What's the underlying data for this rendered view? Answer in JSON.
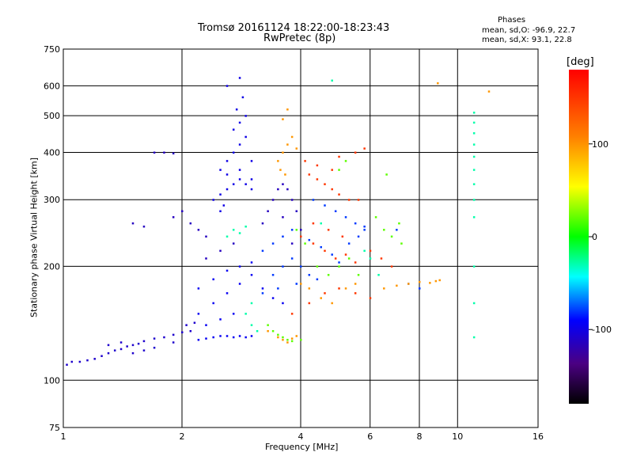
{
  "chart_data": {
    "type": "scatter",
    "title": "Tromsø 20161124  18:22:00-18:23:43",
    "subtitle": "RwPretec (8p)",
    "xlabel": "Frequency [MHz]",
    "ylabel": "Stationary phase Virtual Height [km]",
    "xscale": "log",
    "yscale": "log",
    "xlim": [
      1,
      16
    ],
    "ylim": [
      75,
      750
    ],
    "x_ticks": [
      "1",
      "2",
      "4",
      "6",
      "8",
      "10",
      "16"
    ],
    "x_tick_values": [
      1,
      2,
      4,
      6,
      8,
      10,
      16
    ],
    "y_ticks": [
      "75",
      "100",
      "200",
      "300",
      "400",
      "500",
      "600",
      "750"
    ],
    "y_tick_values": [
      75,
      100,
      200,
      300,
      400,
      500,
      600,
      750
    ],
    "grid": true,
    "phases": {
      "title": "Phases",
      "o_line": "mean, sd,O:  -96.9, 22.7",
      "x_line": "mean, sd,X:  93.1, 22.8"
    },
    "colorbar": {
      "unit": "[deg]",
      "range": [
        -180,
        180
      ],
      "ticks": [
        "100",
        "0",
        "-100"
      ],
      "tick_values": [
        100,
        0,
        -100
      ],
      "colormap": "rainbow (black-purple-blue-cyan-green-yellow-orange-red)",
      "placement": "right"
    },
    "series": [
      {
        "phase": -110,
        "points": [
          [
            1.02,
            110
          ],
          [
            1.05,
            112
          ],
          [
            1.1,
            112
          ],
          [
            1.15,
            113
          ],
          [
            1.2,
            114
          ],
          [
            1.25,
            116
          ],
          [
            1.3,
            118
          ],
          [
            1.35,
            120
          ],
          [
            1.4,
            121
          ],
          [
            1.45,
            123
          ],
          [
            1.5,
            124
          ],
          [
            1.55,
            125
          ],
          [
            1.6,
            127
          ],
          [
            1.7,
            129
          ],
          [
            1.8,
            130
          ],
          [
            1.9,
            132
          ],
          [
            2.0,
            134
          ],
          [
            2.1,
            135
          ],
          [
            1.3,
            124
          ],
          [
            1.4,
            126
          ],
          [
            1.5,
            118
          ],
          [
            1.6,
            120
          ],
          [
            1.7,
            122
          ],
          [
            1.9,
            126
          ],
          [
            2.05,
            140
          ],
          [
            2.15,
            142
          ]
        ]
      },
      {
        "phase": -95,
        "points": [
          [
            2.2,
            128
          ],
          [
            2.3,
            129
          ],
          [
            2.4,
            130
          ],
          [
            2.5,
            131
          ],
          [
            2.6,
            131
          ],
          [
            2.7,
            130
          ],
          [
            2.8,
            131
          ],
          [
            2.9,
            130
          ],
          [
            3.0,
            131
          ],
          [
            2.3,
            140
          ],
          [
            2.5,
            145
          ],
          [
            2.7,
            150
          ],
          [
            2.2,
            150
          ],
          [
            2.4,
            160
          ],
          [
            2.6,
            170
          ],
          [
            2.8,
            180
          ],
          [
            3.0,
            190
          ],
          [
            3.2,
            175
          ],
          [
            3.4,
            165
          ],
          [
            3.6,
            160
          ],
          [
            2.2,
            175
          ],
          [
            2.4,
            185
          ],
          [
            2.6,
            195
          ],
          [
            2.8,
            200
          ],
          [
            3.0,
            205
          ]
        ]
      },
      {
        "phase": -100,
        "points": [
          [
            2.4,
            300
          ],
          [
            2.5,
            310
          ],
          [
            2.6,
            320
          ],
          [
            2.7,
            330
          ],
          [
            2.8,
            340
          ],
          [
            2.9,
            330
          ],
          [
            3.0,
            320
          ],
          [
            2.5,
            360
          ],
          [
            2.6,
            380
          ],
          [
            2.7,
            400
          ],
          [
            2.8,
            420
          ],
          [
            2.9,
            440
          ],
          [
            3.0,
            380
          ],
          [
            2.6,
            350
          ],
          [
            2.8,
            360
          ],
          [
            3.0,
            340
          ],
          [
            2.7,
            460
          ],
          [
            2.8,
            480
          ],
          [
            2.9,
            500
          ],
          [
            2.75,
            520
          ],
          [
            2.85,
            560
          ],
          [
            2.8,
            630
          ],
          [
            2.6,
            600
          ],
          [
            2.5,
            280
          ],
          [
            2.55,
            290
          ]
        ]
      },
      {
        "phase": -115,
        "points": [
          [
            1.7,
            400
          ],
          [
            1.8,
            400
          ],
          [
            1.9,
            398
          ],
          [
            1.5,
            260
          ],
          [
            1.6,
            255
          ],
          [
            1.9,
            270
          ],
          [
            2.0,
            280
          ],
          [
            2.1,
            260
          ],
          [
            2.2,
            250
          ],
          [
            2.3,
            240
          ],
          [
            3.2,
            260
          ],
          [
            3.3,
            280
          ],
          [
            3.4,
            300
          ],
          [
            3.5,
            320
          ],
          [
            3.6,
            330
          ],
          [
            3.7,
            320
          ],
          [
            3.8,
            300
          ],
          [
            3.9,
            280
          ],
          [
            4.0,
            250
          ],
          [
            3.6,
            270
          ],
          [
            3.8,
            230
          ],
          [
            2.3,
            210
          ],
          [
            2.5,
            220
          ],
          [
            2.7,
            230
          ]
        ]
      },
      {
        "phase": -80,
        "points": [
          [
            3.4,
            190
          ],
          [
            3.6,
            200
          ],
          [
            3.8,
            210
          ],
          [
            4.0,
            200
          ],
          [
            4.2,
            190
          ],
          [
            4.4,
            185
          ],
          [
            3.2,
            220
          ],
          [
            3.4,
            230
          ],
          [
            3.6,
            240
          ],
          [
            3.8,
            250
          ],
          [
            4.2,
            235
          ],
          [
            4.5,
            225
          ],
          [
            4.8,
            215
          ],
          [
            5.0,
            205
          ],
          [
            5.3,
            230
          ],
          [
            5.6,
            240
          ],
          [
            5.8,
            250
          ],
          [
            3.2,
            170
          ],
          [
            3.5,
            175
          ],
          [
            3.9,
            180
          ],
          [
            4.3,
            300
          ],
          [
            4.6,
            290
          ],
          [
            4.9,
            280
          ],
          [
            5.2,
            270
          ],
          [
            5.5,
            260
          ],
          [
            5.8,
            255
          ],
          [
            7.0,
            250
          ],
          [
            7.5,
            180
          ],
          [
            8.0,
            175
          ]
        ]
      },
      {
        "phase": -30,
        "points": [
          [
            2.6,
            240
          ],
          [
            2.7,
            250
          ],
          [
            2.8,
            245
          ],
          [
            2.9,
            255
          ],
          [
            3.0,
            140
          ],
          [
            3.1,
            135
          ],
          [
            4.8,
            620
          ],
          [
            4.5,
            260
          ],
          [
            5.8,
            220
          ],
          [
            6.0,
            210
          ],
          [
            6.3,
            190
          ],
          [
            2.9,
            150
          ],
          [
            3.0,
            160
          ],
          [
            11.0,
            510
          ],
          [
            11.0,
            480
          ],
          [
            11.0,
            450
          ],
          [
            11.0,
            420
          ],
          [
            11.0,
            390
          ],
          [
            11.0,
            360
          ],
          [
            11.0,
            330
          ],
          [
            11.0,
            300
          ],
          [
            11.0,
            270
          ],
          [
            11.0,
            200
          ],
          [
            11.0,
            160
          ],
          [
            11.0,
            130
          ]
        ]
      },
      {
        "phase": 20,
        "points": [
          [
            3.3,
            140
          ],
          [
            3.4,
            135
          ],
          [
            3.5,
            132
          ],
          [
            3.6,
            130
          ],
          [
            3.7,
            128
          ],
          [
            3.8,
            127
          ],
          [
            4.0,
            128
          ],
          [
            3.9,
            250
          ],
          [
            4.1,
            230
          ],
          [
            4.4,
            200
          ],
          [
            4.7,
            190
          ],
          [
            5.0,
            200
          ],
          [
            5.3,
            210
          ],
          [
            5.6,
            190
          ],
          [
            6.2,
            270
          ],
          [
            6.5,
            250
          ],
          [
            6.8,
            240
          ],
          [
            7.2,
            230
          ],
          [
            5.2,
            380
          ],
          [
            5.0,
            360
          ],
          [
            6.6,
            350
          ],
          [
            7.1,
            260
          ]
        ]
      },
      {
        "phase": 100,
        "points": [
          [
            3.3,
            135
          ],
          [
            3.5,
            130
          ],
          [
            3.6,
            128
          ],
          [
            3.7,
            126
          ],
          [
            3.8,
            129
          ],
          [
            3.9,
            131
          ],
          [
            3.5,
            380
          ],
          [
            3.6,
            400
          ],
          [
            3.7,
            420
          ],
          [
            3.8,
            440
          ],
          [
            3.9,
            410
          ],
          [
            3.55,
            360
          ],
          [
            3.65,
            350
          ],
          [
            4.0,
            180
          ],
          [
            4.2,
            175
          ],
          [
            4.5,
            165
          ],
          [
            4.8,
            160
          ],
          [
            5.2,
            175
          ],
          [
            5.5,
            180
          ],
          [
            6.5,
            175
          ],
          [
            7.0,
            178
          ],
          [
            7.5,
            180
          ],
          [
            8.0,
            182
          ],
          [
            8.5,
            181
          ],
          [
            8.8,
            183
          ],
          [
            9.0,
            184
          ],
          [
            3.7,
            520
          ],
          [
            3.6,
            490
          ],
          [
            12.0,
            580
          ],
          [
            8.9,
            610
          ]
        ]
      },
      {
        "phase": 150,
        "points": [
          [
            4.0,
            240
          ],
          [
            4.3,
            230
          ],
          [
            4.6,
            220
          ],
          [
            4.9,
            210
          ],
          [
            5.2,
            215
          ],
          [
            5.5,
            205
          ],
          [
            4.2,
            350
          ],
          [
            4.4,
            340
          ],
          [
            4.6,
            330
          ],
          [
            4.8,
            320
          ],
          [
            5.0,
            310
          ],
          [
            5.3,
            300
          ],
          [
            5.6,
            300
          ],
          [
            4.1,
            380
          ],
          [
            4.4,
            370
          ],
          [
            4.8,
            360
          ],
          [
            5.0,
            390
          ],
          [
            5.5,
            400
          ],
          [
            5.8,
            410
          ],
          [
            6.0,
            220
          ],
          [
            6.4,
            210
          ],
          [
            6.8,
            200
          ],
          [
            3.8,
            150
          ],
          [
            4.2,
            160
          ],
          [
            4.6,
            170
          ],
          [
            5.0,
            175
          ],
          [
            5.5,
            170
          ],
          [
            6.0,
            165
          ],
          [
            4.3,
            260
          ],
          [
            4.7,
            250
          ],
          [
            5.1,
            240
          ]
        ]
      }
    ]
  }
}
